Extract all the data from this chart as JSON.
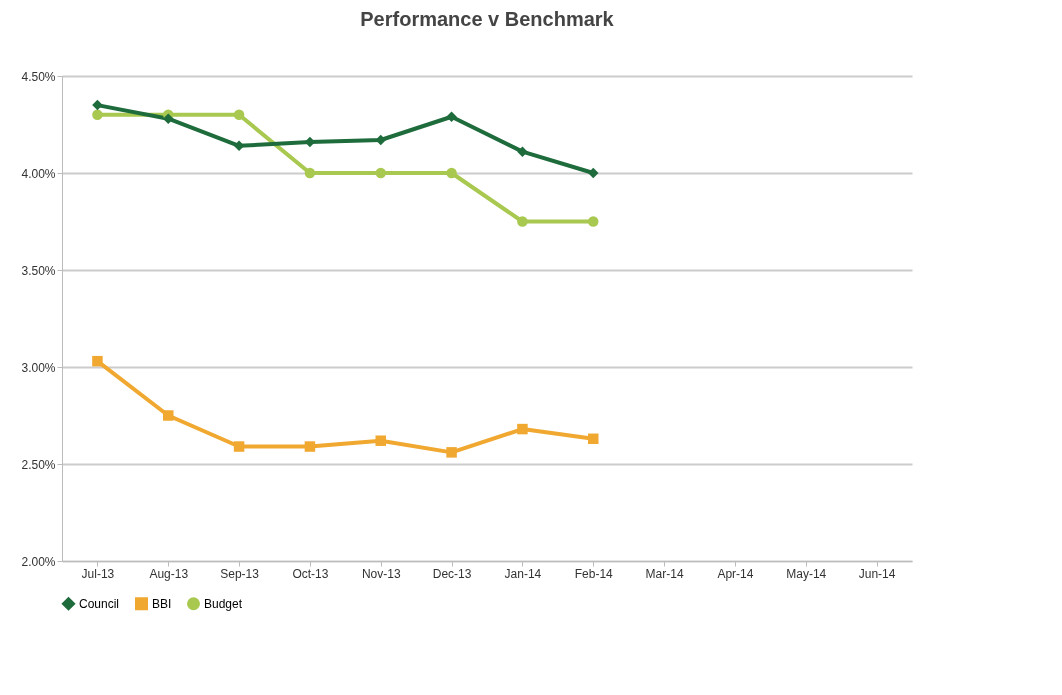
{
  "chart_data": {
    "type": "line",
    "title": "Performance v Benchmark",
    "categories": [
      "Jul-13",
      "Aug-13",
      "Sep-13",
      "Oct-13",
      "Nov-13",
      "Dec-13",
      "Jan-14",
      "Feb-14",
      "Mar-14",
      "Apr-14",
      "May-14",
      "Jun-14"
    ],
    "series": [
      {
        "name": "Council",
        "color": "#1e6b3c",
        "marker": "diamond",
        "values": [
          4.35,
          4.28,
          4.14,
          4.16,
          4.17,
          4.29,
          4.11,
          4.0,
          null,
          null,
          null,
          null
        ]
      },
      {
        "name": "BBI",
        "color": "#f0a830",
        "marker": "square",
        "values": [
          3.03,
          2.75,
          2.59,
          2.59,
          2.62,
          2.56,
          2.68,
          2.63,
          null,
          null,
          null,
          null
        ]
      },
      {
        "name": "Budget",
        "color": "#a8c850",
        "marker": "circle",
        "values": [
          4.3,
          4.3,
          4.3,
          4.0,
          4.0,
          4.0,
          3.75,
          3.75,
          null,
          null,
          null,
          null
        ]
      }
    ],
    "ylim": [
      2.0,
      4.5
    ],
    "yticks": [
      {
        "value": 2.0,
        "label": "2.00%"
      },
      {
        "value": 2.5,
        "label": "2.50%"
      },
      {
        "value": 3.0,
        "label": "3.00%"
      },
      {
        "value": 3.5,
        "label": "3.50%"
      },
      {
        "value": 4.0,
        "label": "4.00%"
      },
      {
        "value": 4.5,
        "label": "4.50%"
      }
    ],
    "grid": "y",
    "legend": "bottom"
  }
}
